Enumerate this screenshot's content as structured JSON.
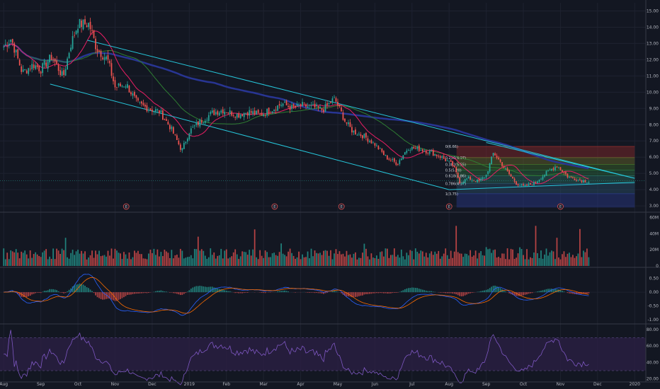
{
  "colors": {
    "background": "#131722",
    "grid": "#1e2230",
    "up": "#26a69a",
    "down": "#ef5350",
    "ma_fast": "#e91e63",
    "ma_mid": "#2e7d32",
    "ma_slow": "#283593",
    "channel": "#26c6da",
    "macd": "#2962ff",
    "signal": "#ff6d00",
    "rsi": "#7e57c2",
    "rsi_band": "#2a1f44",
    "current_price": "#26a69a"
  },
  "chart_data": [
    {
      "type": "candlestick",
      "panel": "price",
      "y_ticks": [
        "15.00",
        "14.00",
        "13.00",
        "12.00",
        "11.00",
        "10.00",
        "9.00",
        "8.00",
        "7.00",
        "6.00",
        "5.00",
        "4.00",
        "3.00"
      ],
      "y_tick_values": [
        15,
        14,
        13,
        12,
        11,
        10,
        9,
        8,
        7,
        6,
        5,
        4,
        3
      ],
      "ylim": [
        2.7,
        15.5
      ],
      "x_tick_labels": [
        "Aug",
        "Sep",
        "Oct",
        "Nov",
        "Dec",
        "2019",
        "Feb",
        "Mar",
        "Apr",
        "May",
        "Jun",
        "Jul",
        "Aug",
        "Sep",
        "Oct",
        "Nov",
        "Dec",
        "2020"
      ],
      "x_tick_months": [
        0,
        1,
        2,
        3,
        4,
        5,
        6,
        7,
        8,
        9,
        10,
        11,
        12,
        13,
        14,
        15,
        16,
        17
      ],
      "xlim_months": [
        -0.1,
        17.3
      ],
      "last_month_with_data": 15.75,
      "price_anchors": {
        "months": [
          0,
          0.2,
          0.5,
          0.8,
          1.0,
          1.3,
          1.6,
          1.8,
          2.0,
          2.3,
          2.5,
          2.8,
          3.0,
          3.3,
          3.6,
          3.9,
          4.2,
          4.5,
          4.8,
          5.0,
          5.3,
          5.6,
          5.9,
          6.3,
          6.6,
          6.9,
          7.2,
          7.5,
          7.8,
          8.0,
          8.3,
          8.6,
          8.9,
          9.0,
          9.2,
          9.4,
          9.7,
          10.0,
          10.3,
          10.6,
          10.9,
          11.2,
          11.5,
          11.8,
          12.1,
          12.3,
          12.5,
          12.8,
          13.0,
          13.2,
          13.5,
          13.8,
          14.0,
          14.3,
          14.6,
          14.9,
          15.2,
          15.5,
          15.75
        ],
        "closes": [
          12.8,
          13.3,
          11.2,
          11.7,
          11.4,
          12.2,
          10.9,
          12.9,
          14.2,
          14.2,
          12.7,
          12.0,
          10.3,
          10.5,
          9.3,
          9.0,
          8.8,
          7.8,
          6.4,
          7.6,
          8.2,
          8.7,
          8.9,
          8.6,
          8.8,
          8.6,
          8.9,
          9.3,
          9.0,
          9.2,
          9.1,
          8.9,
          9.6,
          9.2,
          8.2,
          7.6,
          7.3,
          6.8,
          6.0,
          5.6,
          6.6,
          6.5,
          6.3,
          6.0,
          5.5,
          4.4,
          4.7,
          4.5,
          4.9,
          6.3,
          5.3,
          4.4,
          4.2,
          4.4,
          5.0,
          5.5,
          4.8,
          4.6,
          4.5
        ]
      },
      "current_price": 4.55,
      "channel_upper": [
        [
          2.25,
          13.2
        ],
        [
          17.0,
          4.7
        ]
      ],
      "channel_lower": [
        [
          1.25,
          10.5
        ],
        [
          12.0,
          4.0
        ]
      ],
      "triangle_upper": [
        [
          13.0,
          6.9
        ],
        [
          17.0,
          4.7
        ]
      ],
      "triangle_lower": [
        [
          12.0,
          4.0
        ],
        [
          17.0,
          4.45
        ]
      ],
      "fib_range": {
        "start_month": 12.2,
        "end_month": 17.0,
        "levels": [
          {
            "label": "0(6.66)",
            "value": 6.66,
            "color": "#8b2b2b"
          },
          {
            "label": "0.236(5.97)",
            "value": 5.97,
            "color": "#6b6b2a"
          },
          {
            "label": "0.382(5.55)",
            "value": 5.55,
            "color": "#3f6b2a"
          },
          {
            "label": "0.5(5.20)",
            "value": 5.2,
            "color": "#2a6b3c"
          },
          {
            "label": "0.618(4.86)",
            "value": 4.86,
            "color": "#2a6b5e"
          },
          {
            "label": "0.786(4.37)",
            "value": 4.37,
            "color": "#2a4f6b"
          },
          {
            "label": "1(3.75)",
            "value": 3.75,
            "color": "#2a3a8b"
          }
        ],
        "bottom": 2.9
      },
      "earnings_markers": [
        {
          "month": 3.3,
          "label": "E"
        },
        {
          "month": 7.3,
          "label": "E"
        },
        {
          "month": 9.1,
          "label": "E"
        },
        {
          "month": 12.0,
          "label": "E"
        },
        {
          "month": 15.0,
          "label": "E"
        }
      ]
    },
    {
      "type": "bar",
      "panel": "volume",
      "y_ticks": [
        "60M",
        "40M",
        "20M",
        "0"
      ],
      "y_tick_values": [
        60,
        40,
        20,
        0
      ],
      "ylim": [
        0,
        65
      ],
      "unit": "M"
    },
    {
      "type": "line",
      "panel": "macd",
      "y_ticks": [
        "0.50",
        "0.00",
        "-0.50",
        "-1.00"
      ],
      "y_tick_values": [
        0.5,
        0,
        -0.5,
        -1.0
      ],
      "ylim": [
        -1.1,
        0.85
      ]
    },
    {
      "type": "line",
      "panel": "rsi",
      "y_ticks": [
        "80.00",
        "60.00",
        "40.00",
        "20.00"
      ],
      "y_tick_values": [
        80,
        60,
        40,
        20
      ],
      "ylim": [
        18,
        85
      ],
      "band": [
        30,
        70
      ]
    }
  ]
}
